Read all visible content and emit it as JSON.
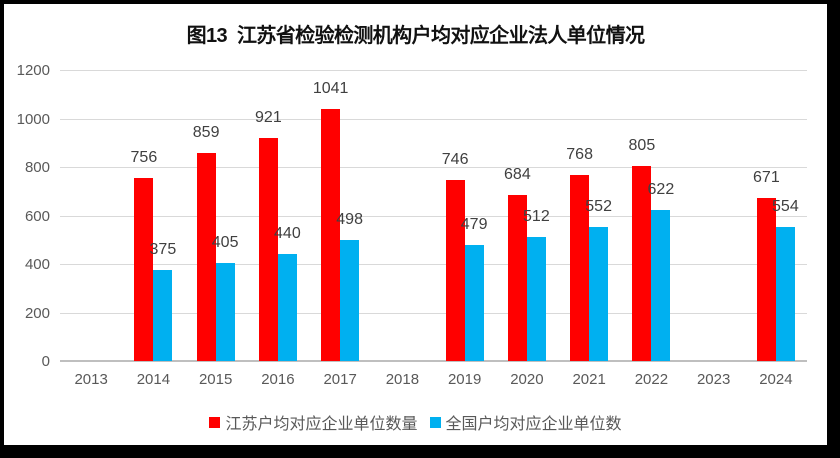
{
  "chart_data": {
    "type": "bar",
    "title": "图13  江苏省检验检测机构户均对应企业法人单位情况",
    "categories": [
      "2013",
      "2014",
      "2015",
      "2016",
      "2017",
      "2018",
      "2019",
      "2020",
      "2021",
      "2022",
      "2023",
      "2024"
    ],
    "series": [
      {
        "name": "江苏户均对应企业单位数量",
        "color": "#FF0000",
        "values": [
          null,
          756,
          859,
          921,
          1041,
          null,
          746,
          684,
          768,
          805,
          null,
          671
        ]
      },
      {
        "name": "全国户均对应企业单位数",
        "color": "#00B0F0",
        "values": [
          null,
          375,
          405,
          440,
          498,
          null,
          479,
          512,
          552,
          622,
          null,
          554
        ]
      }
    ],
    "ylim": [
      0,
      1200
    ],
    "ytick_step": 200,
    "grid": true,
    "legend_position": "bottom"
  },
  "colors": {
    "series_red": "#FF0000",
    "series_blue": "#00B0F0",
    "gridline": "#D9D9D9",
    "axis_line": "#BFBFBF",
    "axis_label": "#595959",
    "value_label": "#404040",
    "title": "#111111"
  }
}
